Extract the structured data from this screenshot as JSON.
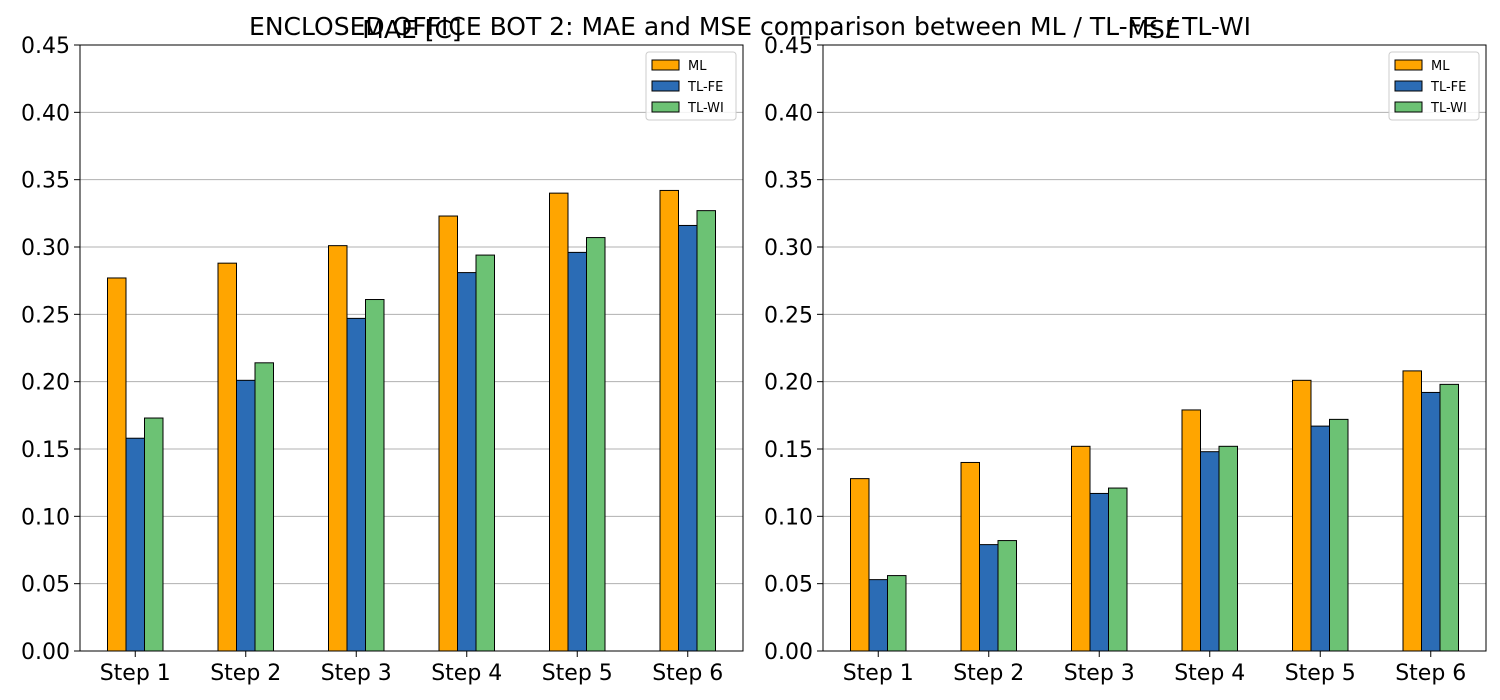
{
  "suptitle": "ENCLOSED OFFICE BOT 2: MAE and MSE comparison between ML / TL-FE / TL-WI",
  "colors": {
    "ML": "#FFA500",
    "TL-FE": "#2B6CB5",
    "TL-WI": "#6CC274",
    "grid": "#b0b0b0",
    "edge": "#000000"
  },
  "chart_data": [
    {
      "type": "bar",
      "title": "MAE [C]",
      "xlabel": "",
      "ylabel": "",
      "ylim": [
        0,
        0.45
      ],
      "yticks": [
        "0.00",
        "0.05",
        "0.10",
        "0.15",
        "0.20",
        "0.25",
        "0.30",
        "0.35",
        "0.40",
        "0.45"
      ],
      "grid": "y",
      "legend_position": "top-right",
      "categories": [
        "Step 1",
        "Step 2",
        "Step 3",
        "Step 4",
        "Step 5",
        "Step 6"
      ],
      "series": [
        {
          "name": "ML",
          "values": [
            0.277,
            0.288,
            0.301,
            0.323,
            0.34,
            0.342
          ]
        },
        {
          "name": "TL-FE",
          "values": [
            0.158,
            0.201,
            0.247,
            0.281,
            0.296,
            0.316
          ]
        },
        {
          "name": "TL-WI",
          "values": [
            0.173,
            0.214,
            0.261,
            0.294,
            0.307,
            0.327
          ]
        }
      ]
    },
    {
      "type": "bar",
      "title": "MSE",
      "xlabel": "",
      "ylabel": "",
      "ylim": [
        0,
        0.45
      ],
      "yticks": [
        "0.00",
        "0.05",
        "0.10",
        "0.15",
        "0.20",
        "0.25",
        "0.30",
        "0.35",
        "0.40",
        "0.45"
      ],
      "grid": "y",
      "legend_position": "top-right",
      "categories": [
        "Step 1",
        "Step 2",
        "Step 3",
        "Step 4",
        "Step 5",
        "Step 6"
      ],
      "series": [
        {
          "name": "ML",
          "values": [
            0.128,
            0.14,
            0.152,
            0.179,
            0.201,
            0.208
          ]
        },
        {
          "name": "TL-FE",
          "values": [
            0.053,
            0.079,
            0.117,
            0.148,
            0.167,
            0.192
          ]
        },
        {
          "name": "TL-WI",
          "values": [
            0.056,
            0.082,
            0.121,
            0.152,
            0.172,
            0.198
          ]
        }
      ]
    }
  ]
}
